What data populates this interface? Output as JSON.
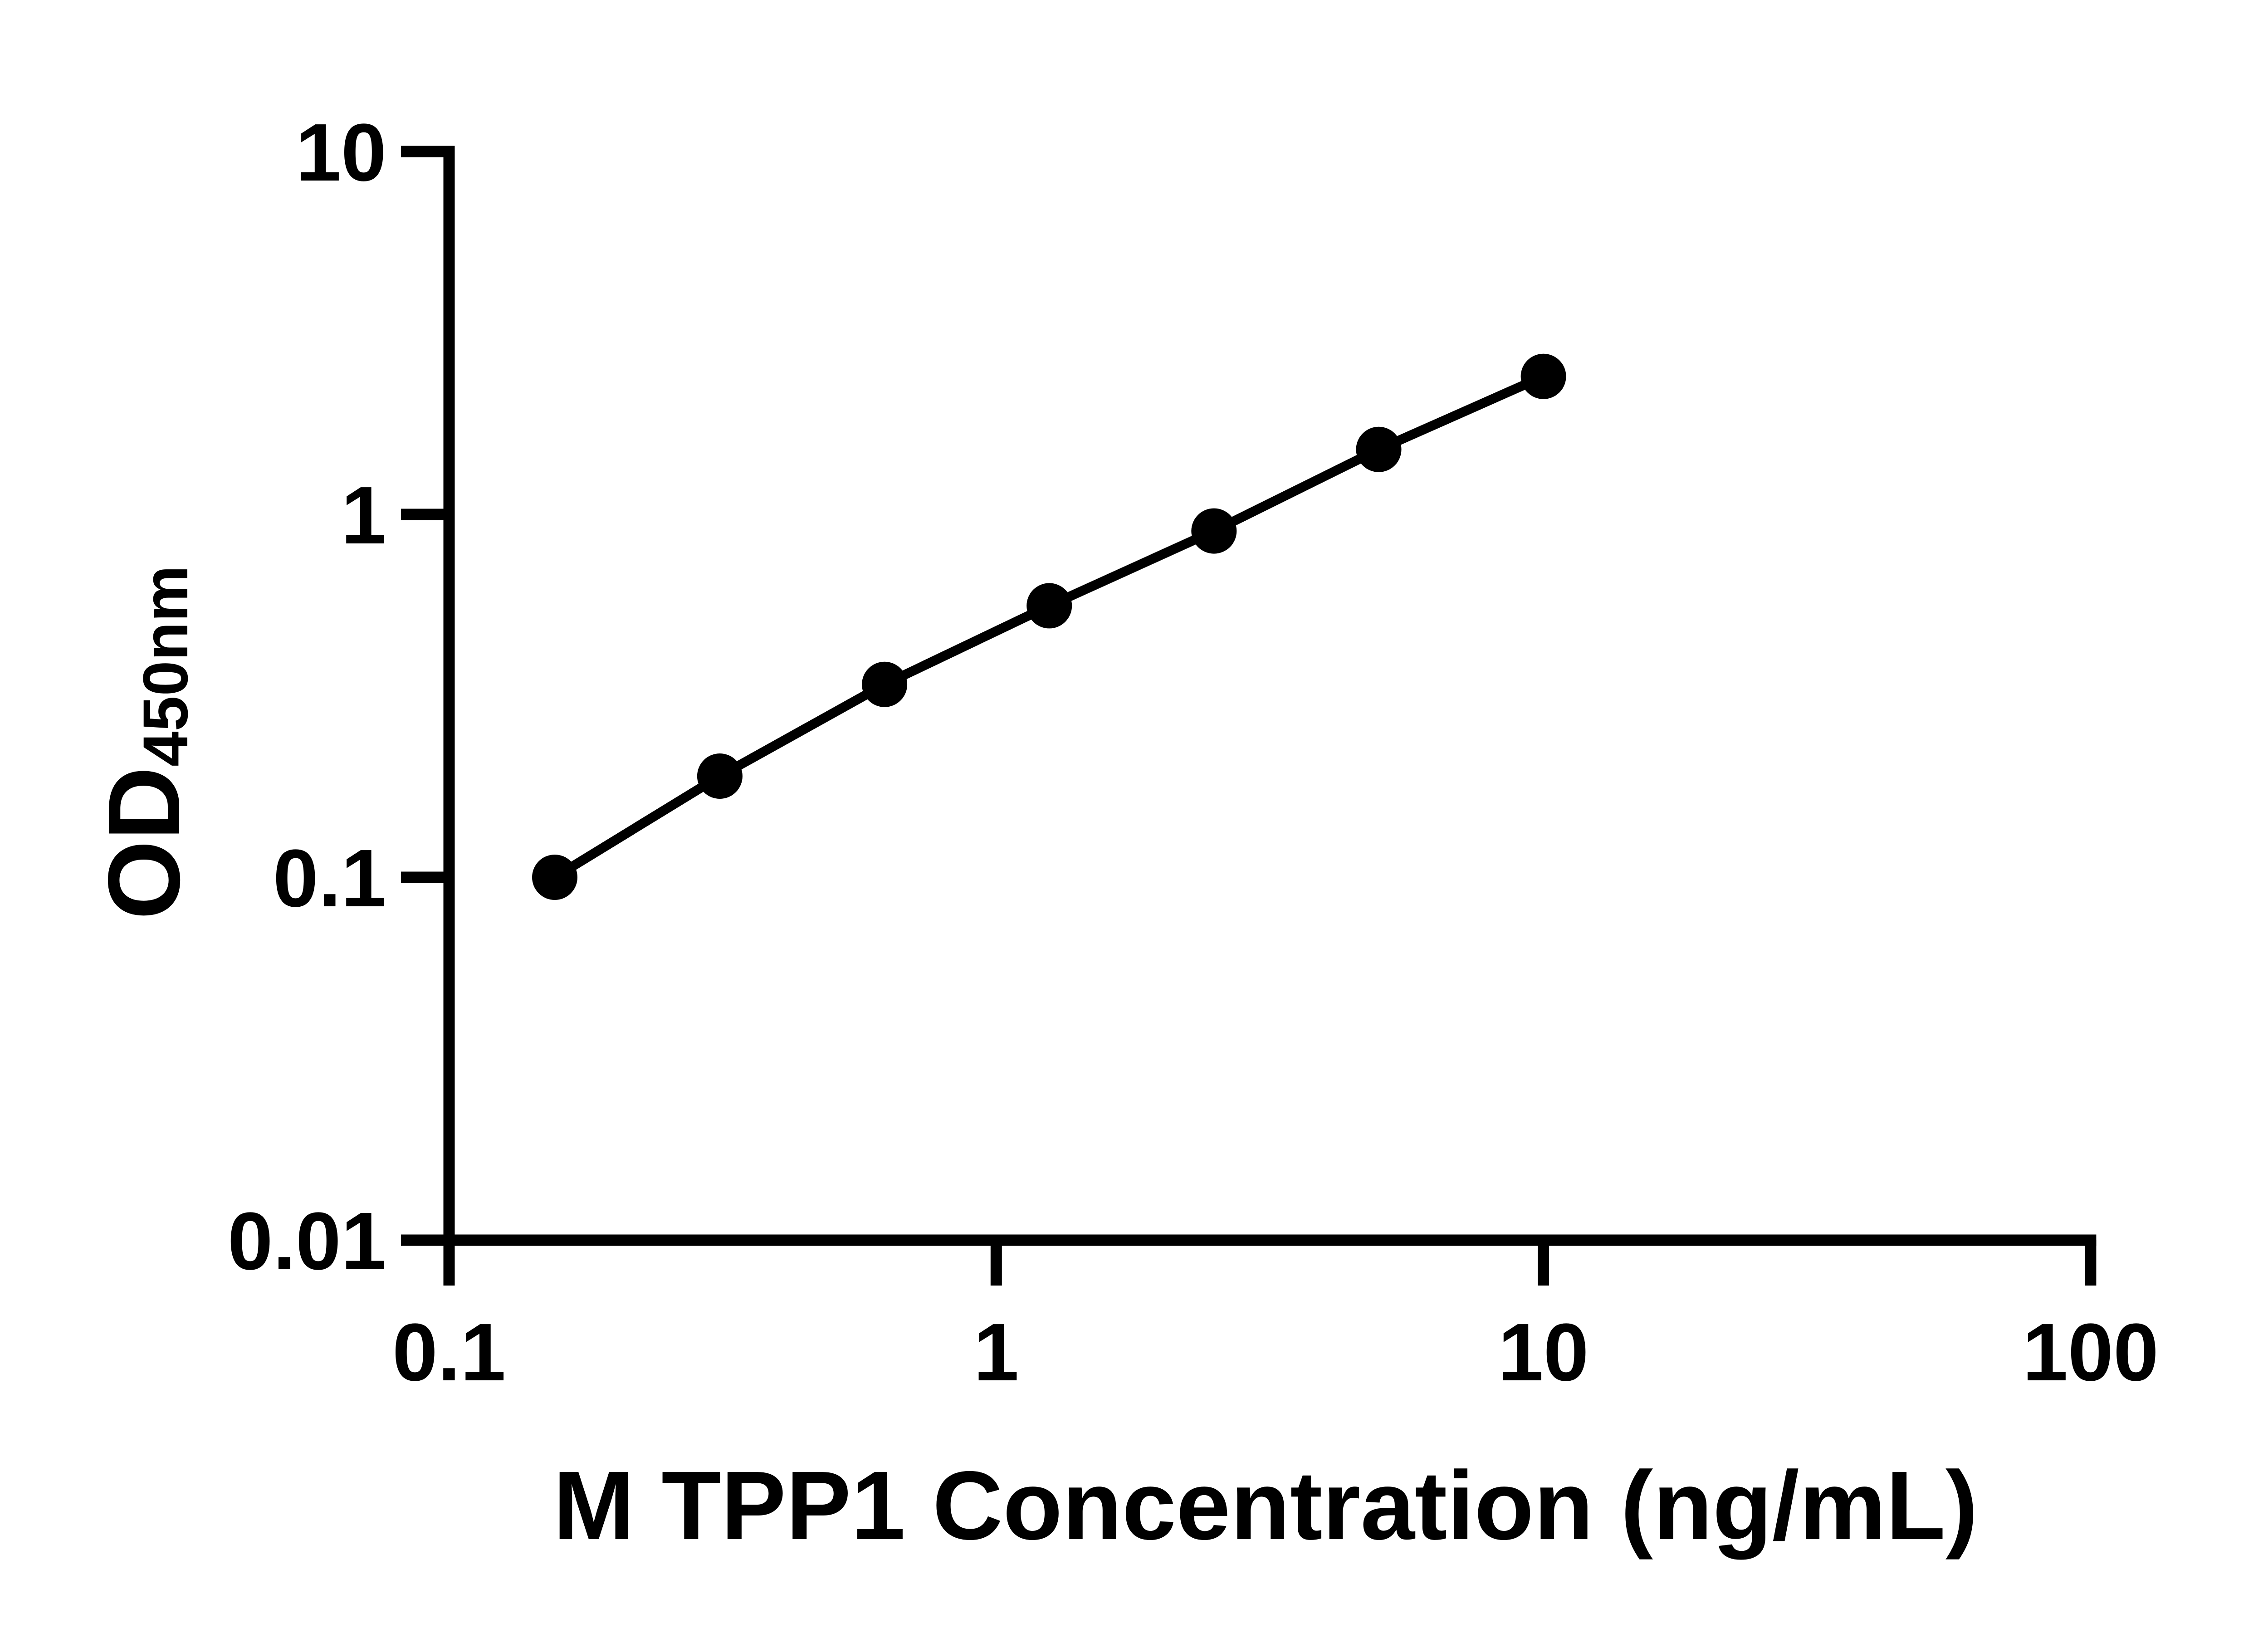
{
  "figure": {
    "background_color": "#ffffff",
    "ink_color": "#000000"
  },
  "chart_data": {
    "type": "scatter",
    "title": "",
    "xlabel": "M TPP1 Concentration (ng/mL)",
    "ylabel_main": "OD",
    "ylabel_sub": "450nm",
    "x_scale": "log",
    "y_scale": "log",
    "xlim": [
      0.1,
      100
    ],
    "ylim": [
      0.01,
      10
    ],
    "grid": false,
    "legend": false,
    "x_ticks": [
      {
        "value": 0.1,
        "label": "0.1"
      },
      {
        "value": 1,
        "label": "1"
      },
      {
        "value": 10,
        "label": "10"
      },
      {
        "value": 100,
        "label": "100"
      }
    ],
    "y_ticks": [
      {
        "value": 0.01,
        "label": "0.01"
      },
      {
        "value": 0.1,
        "label": "0.1"
      },
      {
        "value": 1,
        "label": "1"
      },
      {
        "value": 10,
        "label": "10"
      }
    ],
    "series": [
      {
        "marker": "filled-circle",
        "color": "#000000",
        "line": "solid",
        "points": [
          {
            "x": 0.156,
            "y": 0.1
          },
          {
            "x": 0.3125,
            "y": 0.19
          },
          {
            "x": 0.625,
            "y": 0.34
          },
          {
            "x": 1.25,
            "y": 0.56
          },
          {
            "x": 2.5,
            "y": 0.9
          },
          {
            "x": 5,
            "y": 1.51
          },
          {
            "x": 10,
            "y": 2.4
          }
        ]
      }
    ]
  }
}
